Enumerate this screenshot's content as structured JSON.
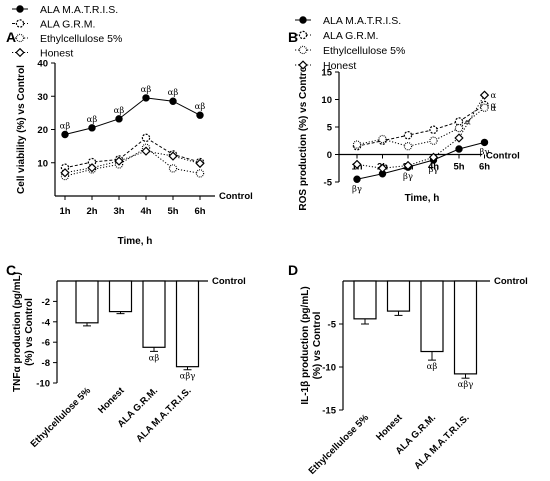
{
  "chart_data": [
    {
      "panel": "A",
      "type": "line",
      "xlabel": "Time, h",
      "ylabel": "Cell viability (%) vs Control",
      "baseline_label": "Control",
      "categories": [
        "1h",
        "2h",
        "3h",
        "4h",
        "5h",
        "6h"
      ],
      "ylim": [
        0,
        40
      ],
      "yticks": [
        10,
        20,
        30,
        40
      ],
      "series": [
        {
          "name": "ALA M.A.T.R.I.S.",
          "marker": "filled-circle",
          "values": [
            18.5,
            20.5,
            23.2,
            29.5,
            28.5,
            24.3
          ],
          "annotations": [
            "αβ",
            "αβ",
            "αβ",
            "αβ",
            "αβ",
            "αβ"
          ]
        },
        {
          "name": "ALA G.R.M.",
          "marker": "open-dashed-circle",
          "values": [
            8.5,
            10.2,
            11.0,
            17.5,
            12.5,
            10.2
          ]
        },
        {
          "name": "Ethylcellulose 5%",
          "marker": "open-dotted-circle",
          "values": [
            6.0,
            8.0,
            9.5,
            14.5,
            8.3,
            6.8
          ]
        },
        {
          "name": "Honest",
          "marker": "open-diamond",
          "values": [
            7.0,
            8.5,
            10.5,
            13.5,
            12.0,
            9.8
          ]
        }
      ]
    },
    {
      "panel": "B",
      "type": "line",
      "xlabel": "Time, h",
      "ylabel": "ROS production (%) vs Control",
      "baseline_label": "Control",
      "categories": [
        "1h",
        "2h",
        "3h",
        "4h",
        "5h",
        "6h"
      ],
      "ylim": [
        -5,
        15
      ],
      "yticks": [
        -5,
        0,
        5,
        10,
        15
      ],
      "series": [
        {
          "name": "ALA M.A.T.R.I.S.",
          "marker": "filled-circle",
          "values": [
            -4.5,
            -3.5,
            -2.3,
            -1.0,
            1.0,
            2.2
          ],
          "annotations": [
            "βγ",
            "",
            "βγ",
            "βγ",
            "",
            "βγ"
          ]
        },
        {
          "name": "ALA G.R.M.",
          "marker": "open-dashed-circle",
          "values": [
            1.5,
            2.5,
            3.5,
            4.5,
            6.0,
            9.0
          ],
          "annotations": [
            "",
            "",
            "",
            "",
            "α",
            "α"
          ]
        },
        {
          "name": "Ethylcellulose 5%",
          "marker": "open-dotted-circle",
          "values": [
            1.8,
            2.8,
            1.5,
            2.5,
            4.8,
            8.5
          ],
          "annotations": [
            "",
            "",
            "",
            "",
            "",
            "α"
          ]
        },
        {
          "name": "Honest",
          "marker": "open-diamond",
          "values": [
            -1.8,
            -2.5,
            -2.0,
            -0.5,
            3.0,
            10.8
          ],
          "annotations": [
            "",
            "",
            "",
            "",
            "",
            "α"
          ]
        }
      ]
    },
    {
      "panel": "C",
      "type": "bar",
      "ylabel": "TNFα production (pg/mL) (%) vs Control",
      "baseline_label": "Control",
      "categories": [
        "Ethylcellulose 5%",
        "Honest",
        "ALA G.R.M.",
        "ALA M.A.T.R.I.S."
      ],
      "values": [
        -4.1,
        -3.0,
        -6.5,
        -8.4
      ],
      "errors": [
        0.3,
        0.2,
        0.4,
        0.3
      ],
      "annotations": [
        "",
        "",
        "αβ",
        "αβγ"
      ],
      "ylim": [
        -10,
        0
      ],
      "yticks": [
        -2,
        -4,
        -6,
        -8,
        -10
      ]
    },
    {
      "panel": "D",
      "type": "bar",
      "ylabel": "IL-1β production (pg/mL) (%) vs Control",
      "baseline_label": "Control",
      "categories": [
        "Ethylcellulose 5%",
        "Honest",
        "ALA G.R.M.",
        "ALA M.A.T.R.I.S."
      ],
      "values": [
        -4.4,
        -3.5,
        -8.2,
        -10.8
      ],
      "errors": [
        0.6,
        0.5,
        1.0,
        0.5
      ],
      "annotations": [
        "",
        "",
        "αβ",
        "αβγ"
      ],
      "ylim": [
        -15,
        0
      ],
      "yticks": [
        -5,
        -10,
        -15
      ]
    }
  ]
}
